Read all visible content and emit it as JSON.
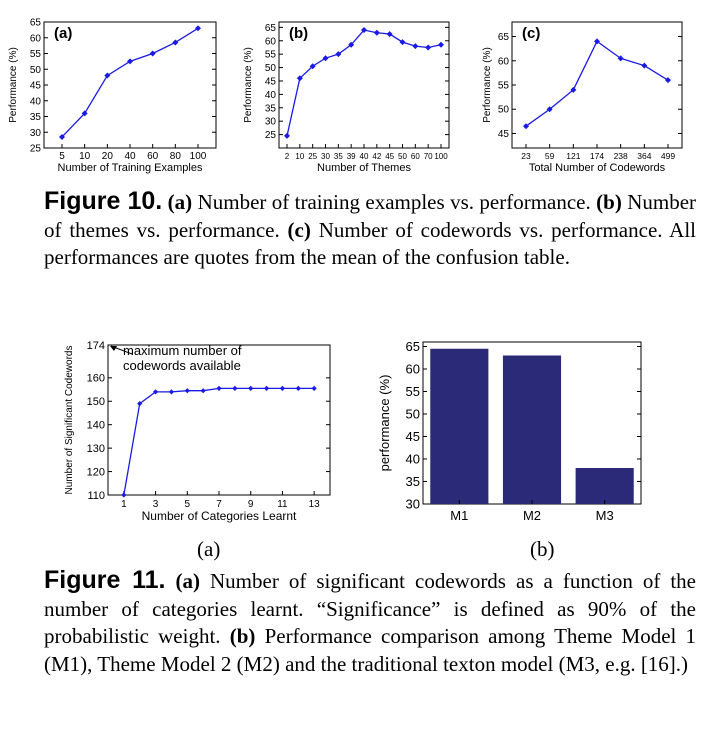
{
  "chart_data": [
    {
      "id": "fig10a",
      "type": "line",
      "panel_label": "(a)",
      "xlabel": "Number of Training Examples",
      "ylabel": "Performance (%)",
      "categories": [
        "5",
        "10",
        "20",
        "40",
        "60",
        "80",
        "100"
      ],
      "values": [
        28.5,
        36,
        48,
        52.5,
        55,
        58.5,
        63
      ],
      "yticks": [
        25,
        30,
        35,
        40,
        45,
        50,
        55,
        60,
        65
      ],
      "ylim": [
        25,
        65
      ],
      "color": "#1a1ae6"
    },
    {
      "id": "fig10b",
      "type": "line",
      "panel_label": "(b)",
      "xlabel": "Number of Themes",
      "ylabel": "Performance (%)",
      "categories": [
        "2",
        "10",
        "25",
        "30",
        "35",
        "39",
        "40",
        "42",
        "45",
        "50",
        "60",
        "70",
        "100"
      ],
      "values": [
        24.5,
        46,
        50.5,
        53.5,
        55,
        58.5,
        64,
        63,
        62.5,
        59.5,
        58,
        57.5,
        58.5
      ],
      "yticks": [
        25,
        30,
        35,
        40,
        45,
        50,
        55,
        60,
        65
      ],
      "ylim": [
        20,
        67
      ],
      "color": "#1a1ae6"
    },
    {
      "id": "fig10c",
      "type": "line",
      "panel_label": "(c)",
      "xlabel": "Total Number of Codewords",
      "ylabel": "Performance (%)",
      "categories": [
        "23",
        "59",
        "121",
        "174",
        "238",
        "364",
        "499"
      ],
      "values": [
        46.5,
        50,
        54,
        64,
        60.5,
        59,
        56
      ],
      "yticks": [
        45,
        50,
        55,
        60,
        65
      ],
      "ylim": [
        42,
        68
      ],
      "color": "#1a1ae6"
    },
    {
      "id": "fig11a",
      "type": "line",
      "xlabel": "Number of Categories Learnt",
      "ylabel": "Number of Significant Codewords",
      "x": [
        1,
        2,
        3,
        4,
        5,
        6,
        7,
        8,
        9,
        10,
        11,
        12,
        13
      ],
      "values": [
        110,
        149,
        154,
        154,
        154.5,
        154.5,
        155.5,
        155.5,
        155.5,
        155.5,
        155.5,
        155.5,
        155.5
      ],
      "xticks": [
        "1",
        "3",
        "5",
        "7",
        "9",
        "11",
        "13"
      ],
      "yticks": [
        "110",
        "120",
        "130",
        "140",
        "150",
        "160",
        "174"
      ],
      "ylim": [
        110,
        174
      ],
      "xlim": [
        0,
        14
      ],
      "annotation": [
        "maximum number of",
        "codewords available"
      ],
      "color": "#1a1ae6"
    },
    {
      "id": "fig11b",
      "type": "bar",
      "ylabel": "performance (%)",
      "categories": [
        "M1",
        "M2",
        "M3"
      ],
      "values": [
        64.5,
        63,
        38
      ],
      "yticks": [
        30,
        35,
        40,
        45,
        50,
        55,
        60,
        65
      ],
      "ylim": [
        30,
        66
      ],
      "color": "#2a2a78"
    }
  ],
  "captions": {
    "fig10": {
      "label": "Figure 10.",
      "a_tag": "(a)",
      "a_text": "Number of training examples vs. performance.",
      "b_tag": "(b)",
      "b_text": "Number of themes vs. performance.",
      "c_tag": "(c)",
      "c_text": "Number of codewords vs. performance. All performances are quotes from the mean of the confusion table."
    },
    "fig11": {
      "label": "Figure 11.",
      "a_tag": "(a)",
      "a_text": "Number of significant codewords as a function of the number of categories learnt. “Significance” is defined as 90% of the probabilistic weight.",
      "b_tag": "(b)",
      "b_text": "Performance comparison among Theme Model 1 (M1), Theme Model 2 (M2) and the traditional texton model (M3, e.g. [16].)"
    },
    "sub_a": "(a)",
    "sub_b": "(b)"
  }
}
